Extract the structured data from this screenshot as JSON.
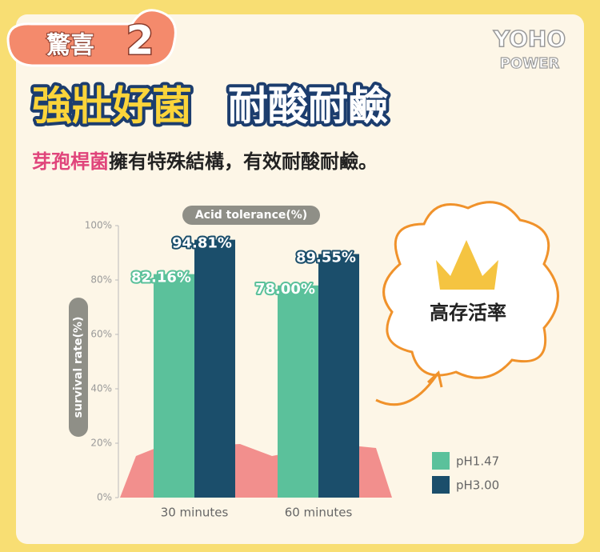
{
  "badge": {
    "text": "驚喜",
    "number": "2"
  },
  "logo": {
    "line1": "YOHO",
    "line2": "POWER"
  },
  "headline": {
    "part1": "強壯好菌",
    "part2": "耐酸耐鹼"
  },
  "subtitle": {
    "highlight": "芽孢桿菌",
    "text": "擁有特殊結構，有效耐酸耐鹼。"
  },
  "callout": "高存活率",
  "chart_data": {
    "type": "bar",
    "title": "Acid tolerance(%)",
    "y_label": "survival rate(%)",
    "categories": [
      "30 minutes",
      "60 minutes"
    ],
    "series": [
      {
        "name": "pH1.47",
        "color": "#5bc19b",
        "values": [
          82.16,
          78.0
        ],
        "value_labels": [
          "82.16%",
          "78.00%"
        ]
      },
      {
        "name": "pH3.00",
        "color": "#1b4e6b",
        "values": [
          94.81,
          89.55
        ],
        "value_labels": [
          "94.81%",
          "89.55%"
        ]
      }
    ],
    "ylim": [
      0,
      100
    ],
    "yticks": [
      {
        "value": 0,
        "label": "0%"
      },
      {
        "value": 20,
        "label": "20%"
      },
      {
        "value": 40,
        "label": "40%"
      },
      {
        "value": 60,
        "label": "60%"
      },
      {
        "value": 80,
        "label": "80%"
      },
      {
        "value": 100,
        "label": "100%"
      }
    ],
    "legend": "lower right"
  }
}
